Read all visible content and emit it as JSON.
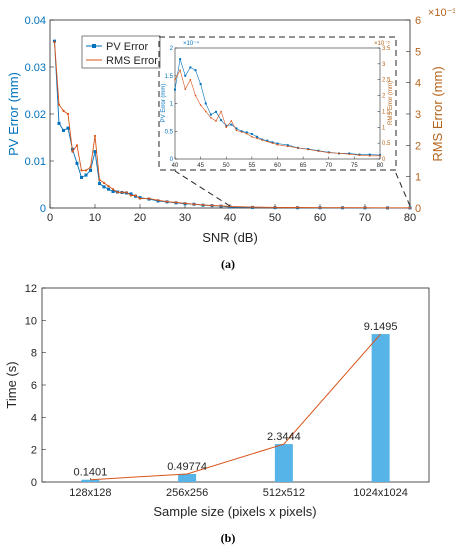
{
  "colors": {
    "pv": "#0072BD",
    "rms": "#D95319",
    "rms_axis": "#B5651D",
    "bar": "#56B4E9",
    "trend": "#D95319",
    "axis": "#262626"
  },
  "panel_a": {
    "caption": "(a)",
    "xlabel": "SNR (dB)",
    "ylabel_left": "PV Error (mm)",
    "ylabel_right": "RMS Error (mm)",
    "right_exponent": "×10⁻³",
    "legend": [
      "PV Error",
      "RMS Error"
    ],
    "x_ticks": [
      "0",
      "10",
      "20",
      "30",
      "40",
      "50",
      "60",
      "70",
      "80"
    ],
    "y_left_ticks": [
      "0",
      "0.01",
      "0.02",
      "0.03",
      "0.04"
    ],
    "y_right_ticks": [
      "0",
      "1",
      "2",
      "3",
      "4",
      "5",
      "6"
    ],
    "inset": {
      "x_ticks": [
        "40",
        "45",
        "50",
        "55",
        "60",
        "65",
        "70",
        "75",
        "80"
      ],
      "y_left_ticks": [
        "0",
        "0.5",
        "1",
        "1.5",
        "2"
      ],
      "y_right_ticks": [
        "0",
        "0.5",
        "1",
        "1.5",
        "2",
        "2.5",
        "3",
        "3.5"
      ],
      "ylabel_left": "PV Error (mm)",
      "ylabel_right": "RMS Error (mm)",
      "exp_left": "×10⁻⁴",
      "exp_right": "×10⁻⁵"
    }
  },
  "panel_b": {
    "caption": "(b)",
    "xlabel": "Sample size (pixels x pixels)",
    "ylabel": "Time (s)",
    "y_ticks": [
      "0",
      "2",
      "4",
      "6",
      "8",
      "10",
      "12"
    ]
  },
  "chart_data": [
    {
      "type": "line",
      "xlabel": "SNR (dB)",
      "ylabel": "PV Error (mm)",
      "y2label": "RMS Error (mm)",
      "xlim": [
        0,
        80
      ],
      "ylim": [
        0,
        0.04
      ],
      "y2lim": [
        0,
        0.006
      ],
      "x": [
        1,
        2,
        3,
        4,
        5,
        6,
        7,
        8,
        9,
        10,
        11,
        12,
        13,
        14,
        15,
        16,
        17,
        18,
        19,
        20,
        22,
        24,
        26,
        28,
        30,
        32,
        34,
        36,
        38,
        40,
        45,
        50,
        55,
        60,
        65,
        70,
        75,
        80
      ],
      "series": [
        {
          "name": "PV Error",
          "axis": "left",
          "values": [
            0.0355,
            0.018,
            0.0165,
            0.017,
            0.0125,
            0.0095,
            0.0065,
            0.007,
            0.008,
            0.012,
            0.0052,
            0.0045,
            0.004,
            0.0035,
            0.0034,
            0.0033,
            0.0032,
            0.003,
            0.0025,
            0.0022,
            0.0019,
            0.0015,
            0.0013,
            0.0011,
            0.0009,
            0.0008,
            0.0006,
            0.0005,
            0.0004,
            0.0002,
            0.00012,
            8e-05,
            6e-05,
            5e-05,
            4e-05,
            3e-05,
            2e-05,
            2e-05
          ]
        },
        {
          "name": "RMS Error",
          "axis": "right",
          "values": [
            0.0053,
            0.0033,
            0.0031,
            0.003,
            0.0018,
            0.002,
            0.0012,
            0.0012,
            0.0013,
            0.0023,
            0.0009,
            0.0008,
            0.0007,
            0.0006,
            0.0005,
            0.0005,
            0.0005,
            0.0004,
            0.0004,
            0.0003,
            0.0003,
            0.00025,
            0.0002,
            0.00018,
            0.00015,
            0.00012,
            0.0001,
            8e-05,
            7e-05,
            5e-05,
            3e-05,
            2e-05,
            1.5e-05,
            1e-05,
            1e-05,
            1e-05,
            5e-06,
            5e-06
          ]
        }
      ]
    },
    {
      "type": "line",
      "title": "inset",
      "xlim": [
        40,
        80
      ],
      "ylim": [
        0,
        0.0002
      ],
      "y2lim": [
        0,
        3.5e-05
      ],
      "x": [
        40,
        41,
        42,
        43,
        44,
        45,
        46,
        47,
        48,
        49,
        50,
        51,
        52,
        53,
        54,
        55,
        56,
        57,
        58,
        59,
        60,
        62,
        64,
        66,
        68,
        70,
        72,
        74,
        76,
        78,
        80
      ],
      "series": [
        {
          "name": "PV Error",
          "axis": "left",
          "values": [
            0.000125,
            0.00018,
            0.00015,
            0.000165,
            0.00016,
            0.000135,
            0.0001,
            8e-05,
            8.5e-05,
            7e-05,
            6e-05,
            6.2e-05,
            5.5e-05,
            5e-05,
            4.8e-05,
            4.5e-05,
            4e-05,
            3.5e-05,
            3.3e-05,
            3e-05,
            2.8e-05,
            2.5e-05,
            2e-05,
            1.8e-05,
            1.5e-05,
            1.2e-05,
            1e-05,
            1e-05,
            8e-06,
            8e-06,
            7e-06
          ]
        },
        {
          "name": "RMS Error",
          "axis": "right",
          "values": [
            2.5e-05,
            2.8e-05,
            2.2e-05,
            2.5e-05,
            2e-05,
            1.7e-05,
            1.5e-05,
            1.3e-05,
            1.2e-05,
            1.5e-05,
            1e-05,
            1.2e-05,
            9e-06,
            8.5e-06,
            8e-06,
            7e-06,
            6.5e-06,
            6e-06,
            5.5e-06,
            5e-06,
            4.5e-06,
            4e-06,
            3.5e-06,
            3e-06,
            2.5e-06,
            2e-06,
            1.8e-06,
            1.5e-06,
            1.2e-06,
            1e-06,
            1e-06
          ]
        }
      ]
    },
    {
      "type": "bar",
      "xlabel": "Sample size (pixels x pixels)",
      "ylabel": "Time (s)",
      "ylim": [
        0,
        12
      ],
      "categories": [
        "128x128",
        "256x256",
        "512x512",
        "1024x1024"
      ],
      "values": [
        0.1401,
        0.49774,
        2.3444,
        9.1495
      ],
      "data_labels": [
        "0.1401",
        "0.49774",
        "2.3444",
        "9.1495"
      ]
    }
  ]
}
